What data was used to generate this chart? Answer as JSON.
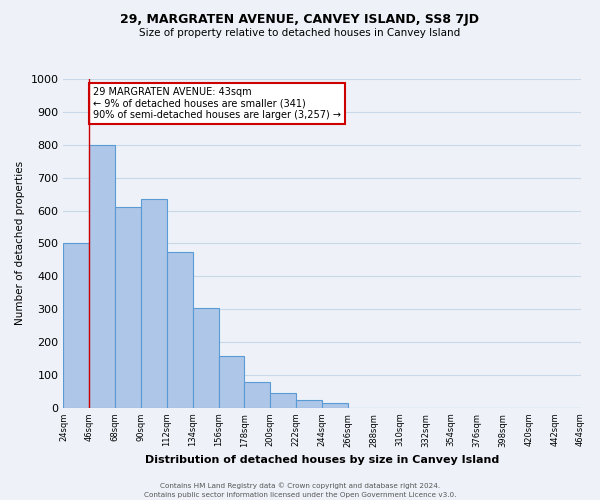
{
  "title": "29, MARGRATEN AVENUE, CANVEY ISLAND, SS8 7JD",
  "subtitle": "Size of property relative to detached houses in Canvey Island",
  "xlabel": "Distribution of detached houses by size in Canvey Island",
  "ylabel": "Number of detached properties",
  "bar_values": [
    500,
    800,
    610,
    635,
    475,
    305,
    158,
    78,
    45,
    25,
    15,
    0,
    0,
    0,
    0,
    0,
    0,
    0,
    0,
    0
  ],
  "bin_labels": [
    "24sqm",
    "46sqm",
    "68sqm",
    "90sqm",
    "112sqm",
    "134sqm",
    "156sqm",
    "178sqm",
    "200sqm",
    "222sqm",
    "244sqm",
    "266sqm",
    "288sqm",
    "310sqm",
    "332sqm",
    "354sqm",
    "376sqm",
    "398sqm",
    "420sqm",
    "442sqm",
    "464sqm"
  ],
  "bar_color": "#aec6e8",
  "bar_edge_color": "#5b9bd5",
  "bar_edge_width": 0.8,
  "annotation_box_text": "29 MARGRATEN AVENUE: 43sqm\n← 9% of detached houses are smaller (341)\n90% of semi-detached houses are larger (3,257) →",
  "annotation_box_color": "#ffffff",
  "annotation_box_edge_color": "#cc0000",
  "red_line_x": 1,
  "ylim": [
    0,
    1000
  ],
  "yticks": [
    0,
    100,
    200,
    300,
    400,
    500,
    600,
    700,
    800,
    900,
    1000
  ],
  "grid_color": "#c8d8e8",
  "background_color": "#eef2f8",
  "footer_line1": "Contains HM Land Registry data © Crown copyright and database right 2024.",
  "footer_line2": "Contains public sector information licensed under the Open Government Licence v3.0."
}
